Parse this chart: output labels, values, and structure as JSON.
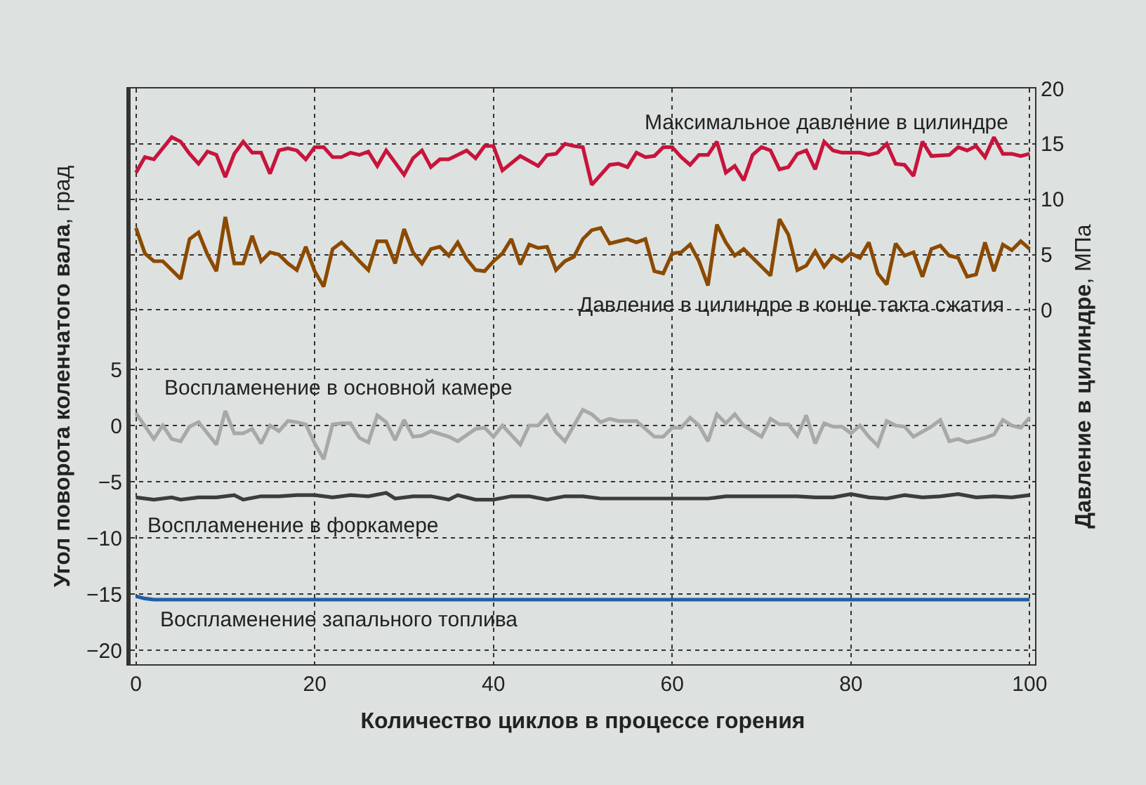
{
  "chart_data": {
    "type": "line",
    "xlabel": "Количество циклов в процессе горения",
    "ylabel": "Угол поворота коленчатого вала, град",
    "y2label": "Давление в цилиндре, МПа",
    "xlim": [
      -0.6,
      100.6
    ],
    "xticks": [
      0,
      20,
      40,
      60,
      80,
      100
    ],
    "ylim": [
      -21.25,
      30
    ],
    "yticks": [
      -20,
      -15,
      -10,
      -5,
      0,
      5
    ],
    "y2lim": [
      -32,
      20
    ],
    "y2ticks": [
      0,
      5,
      10,
      15,
      20
    ],
    "grid": true,
    "legend": false,
    "marker": "none",
    "line_style": "solid",
    "series": [
      {
        "name": "Максимальное давление в цилиндре",
        "color": "#c8143c",
        "axis": "y2",
        "x": [
          0,
          1,
          2,
          4,
          5,
          6,
          7,
          8,
          9,
          10,
          11,
          12,
          13,
          14,
          15,
          16,
          17,
          18,
          19,
          20,
          21,
          22,
          23,
          24,
          25,
          26,
          27,
          28,
          30,
          31,
          32,
          33,
          34,
          35,
          37,
          38,
          39,
          40,
          41,
          43,
          45,
          46,
          47,
          48,
          49,
          50,
          51,
          52,
          53,
          54,
          55,
          56,
          57,
          58,
          59,
          60,
          61,
          62,
          63,
          64,
          65,
          66,
          67,
          68,
          69,
          70,
          71,
          72,
          73,
          74,
          75,
          76,
          77,
          78,
          79,
          81,
          82,
          83,
          84,
          85,
          86,
          87,
          88,
          89,
          91,
          92,
          93,
          94,
          95,
          96,
          97,
          98,
          99,
          100
        ],
        "values": [
          12.4,
          13.8,
          13.6,
          15.6,
          15.2,
          14.1,
          13.2,
          14.3,
          14.0,
          12.0,
          14.1,
          15.2,
          14.2,
          14.2,
          12.3,
          14.4,
          14.6,
          14.4,
          13.6,
          14.7,
          14.7,
          13.8,
          13.8,
          14.2,
          14.0,
          14.3,
          13.0,
          14.4,
          12.2,
          13.7,
          14.4,
          12.9,
          13.6,
          13.6,
          14.4,
          13.7,
          14.8,
          14.8,
          12.6,
          13.9,
          13.0,
          14.0,
          14.1,
          15.0,
          14.8,
          14.7,
          11.3,
          12.2,
          13.1,
          13.2,
          12.9,
          14.2,
          13.8,
          13.9,
          14.7,
          14.7,
          13.8,
          13.1,
          14.0,
          14.0,
          15.2,
          12.4,
          13.0,
          11.7,
          14.0,
          14.7,
          14.4,
          12.7,
          12.9,
          14.1,
          14.4,
          12.7,
          15.2,
          14.4,
          14.2,
          14.2,
          14.0,
          14.2,
          15.0,
          13.2,
          13.1,
          12.1,
          15.2,
          13.9,
          14.0,
          14.7,
          14.4,
          14.8,
          13.8,
          15.6,
          14.1,
          14.1,
          13.9,
          14.1
        ]
      },
      {
        "name": "Давление в цилиндре в конце такта сжатия",
        "color": "#8b4a00",
        "axis": "y2",
        "x": [
          0,
          1,
          2,
          3,
          5,
          6,
          7,
          8,
          9,
          10,
          11,
          12,
          13,
          14,
          15,
          16,
          17,
          18,
          19,
          20,
          21,
          22,
          23,
          24,
          25,
          26,
          27,
          28,
          29,
          30,
          31,
          32,
          33,
          34,
          35,
          36,
          37,
          38,
          39,
          40,
          41,
          42,
          43,
          44,
          45,
          46,
          47,
          48,
          49,
          50,
          51,
          52,
          53,
          54,
          55,
          56,
          57,
          58,
          59,
          60,
          61,
          62,
          63,
          64,
          65,
          66,
          67,
          68,
          71,
          72,
          73,
          74,
          75,
          76,
          77,
          78,
          79,
          80,
          81,
          82,
          83,
          84,
          85,
          86,
          87,
          88,
          89,
          90,
          91,
          92,
          93,
          94,
          95,
          96,
          97,
          98,
          99,
          100
        ],
        "values": [
          7.4,
          5.1,
          4.4,
          4.4,
          2.8,
          6.4,
          7.0,
          5.0,
          3.5,
          8.4,
          4.2,
          4.2,
          6.7,
          4.4,
          5.2,
          5.0,
          4.2,
          3.6,
          5.7,
          3.5,
          2.1,
          5.5,
          6.1,
          5.3,
          4.4,
          3.6,
          6.2,
          6.2,
          4.2,
          7.3,
          5.2,
          4.2,
          5.5,
          5.7,
          4.9,
          6.1,
          4.6,
          3.6,
          3.5,
          4.4,
          5.1,
          6.4,
          4.1,
          5.9,
          5.6,
          5.7,
          3.6,
          4.4,
          4.8,
          6.4,
          7.2,
          7.4,
          6.0,
          6.2,
          6.4,
          6.1,
          6.4,
          3.5,
          3.3,
          5.1,
          5.2,
          5.9,
          4.4,
          2.2,
          7.7,
          6.1,
          4.9,
          5.5,
          3.1,
          8.2,
          6.8,
          3.6,
          4.0,
          5.3,
          3.9,
          4.9,
          4.4,
          5.1,
          4.7,
          6.1,
          3.3,
          2.3,
          6.0,
          4.9,
          5.2,
          3.0,
          5.5,
          5.8,
          4.9,
          4.7,
          3.0,
          3.2,
          6.1,
          3.5,
          5.9,
          5.4,
          6.2,
          5.5
        ]
      },
      {
        "name": "Воспламенение в основной камере",
        "color": "#a8a8a8",
        "x": [
          0,
          2,
          3,
          4,
          5,
          6,
          7,
          9,
          10,
          11,
          12,
          13,
          14,
          15,
          16,
          17,
          18,
          19,
          20,
          21,
          22,
          23,
          24,
          25,
          26,
          27,
          28,
          29,
          30,
          31,
          32,
          33,
          35,
          36,
          38,
          39,
          40,
          41,
          43,
          44,
          45,
          46,
          47,
          48,
          49,
          50,
          51,
          52,
          53,
          54,
          56,
          58,
          59,
          60,
          61,
          62,
          63,
          64,
          65,
          66,
          67,
          68,
          69,
          70,
          71,
          72,
          73,
          74,
          75,
          76,
          77,
          78,
          79,
          80,
          81,
          82,
          83,
          84,
          85,
          86,
          87,
          89,
          90,
          91,
          92,
          93,
          94,
          95,
          96,
          97,
          98,
          99,
          100
        ],
        "values": [
          1.1,
          -1.2,
          0.0,
          -1.2,
          -1.4,
          -0.1,
          0.3,
          -1.7,
          1.3,
          -0.7,
          -0.7,
          -0.3,
          -1.6,
          0.0,
          -0.5,
          0.4,
          0.3,
          0.1,
          -1.6,
          -3.0,
          0.1,
          0.2,
          0.2,
          -1.1,
          -1.5,
          0.9,
          0.3,
          -1.3,
          0.5,
          -1.0,
          -0.9,
          -0.5,
          -1.0,
          -1.4,
          -0.3,
          -0.2,
          -1.0,
          0.0,
          -1.7,
          0.0,
          0.0,
          0.9,
          -0.6,
          -1.4,
          0.0,
          1.4,
          1.0,
          0.3,
          0.6,
          0.4,
          0.4,
          -1.0,
          -1.0,
          -0.2,
          -0.2,
          0.7,
          0.0,
          -1.4,
          1.0,
          0.2,
          1.0,
          0.0,
          -0.5,
          -1.0,
          0.6,
          0.1,
          0.1,
          -0.9,
          0.9,
          -1.6,
          0.2,
          -0.1,
          -0.1,
          -0.7,
          0.0,
          -1.0,
          -1.8,
          0.4,
          0.0,
          -0.1,
          -1.0,
          -0.1,
          0.5,
          -1.4,
          -1.2,
          -1.5,
          -1.3,
          -1.1,
          -0.8,
          0.5,
          0.0,
          -0.2,
          0.7
        ]
      },
      {
        "name": "Воспламенение в форкамере",
        "color": "#3c3c3c",
        "x": [
          0,
          2,
          4,
          5,
          7,
          9,
          11,
          12,
          14,
          16,
          18,
          20,
          22,
          24,
          26,
          28,
          29,
          31,
          33,
          35,
          36,
          38,
          40,
          42,
          44,
          46,
          48,
          50,
          52,
          54,
          56,
          58,
          60,
          62,
          64,
          66,
          68,
          70,
          72,
          74,
          76,
          78,
          80,
          82,
          84,
          86,
          88,
          90,
          92,
          94,
          96,
          98,
          100
        ],
        "values": [
          -6.4,
          -6.6,
          -6.4,
          -6.6,
          -6.4,
          -6.4,
          -6.2,
          -6.6,
          -6.3,
          -6.3,
          -6.2,
          -6.2,
          -6.4,
          -6.2,
          -6.3,
          -6.0,
          -6.5,
          -6.3,
          -6.3,
          -6.6,
          -6.2,
          -6.6,
          -6.6,
          -6.3,
          -6.3,
          -6.6,
          -6.3,
          -6.3,
          -6.5,
          -6.5,
          -6.5,
          -6.5,
          -6.5,
          -6.5,
          -6.5,
          -6.3,
          -6.3,
          -6.3,
          -6.3,
          -6.3,
          -6.4,
          -6.4,
          -6.1,
          -6.4,
          -6.5,
          -6.2,
          -6.4,
          -6.3,
          -6.1,
          -6.4,
          -6.3,
          -6.4,
          -6.2
        ]
      },
      {
        "name": "Воспламенение запального топлива",
        "color": "#1f5fa8",
        "x": [
          0,
          1,
          2,
          100
        ],
        "values": [
          -15.2,
          -15.4,
          -15.5,
          -15.5
        ]
      }
    ]
  }
}
